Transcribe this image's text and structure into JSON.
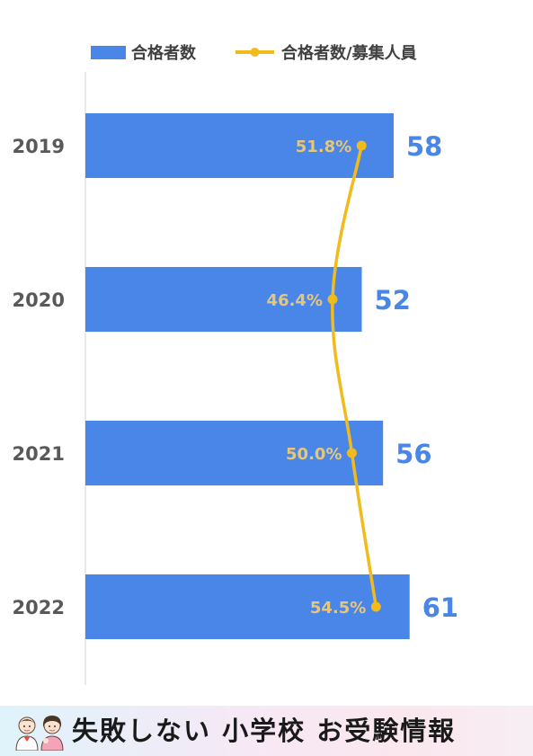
{
  "chart_data": {
    "type": "bar",
    "orientation": "horizontal",
    "categories": [
      "2019",
      "2020",
      "2021",
      "2022"
    ],
    "series": [
      {
        "name": "合格者数",
        "kind": "bar",
        "color": "#4a86e8",
        "values": [
          58,
          52,
          56,
          61
        ],
        "labels": [
          "58",
          "52",
          "56",
          "61"
        ]
      },
      {
        "name": "合格者数/募集人員",
        "kind": "line",
        "color": "#f1bb1b",
        "values": [
          51.8,
          46.4,
          50.0,
          54.5
        ],
        "labels": [
          "51.8%",
          "46.4%",
          "50.0%",
          "54.5%"
        ]
      }
    ],
    "legend": {
      "position": "top",
      "entries": [
        "合格者数",
        "合格者数/募集人員"
      ]
    },
    "grid": false,
    "colors": {
      "bar": "#4a86e8",
      "line": "#f1bb1b",
      "bar_label": "#4a86e8",
      "line_label": "#e6c77a",
      "category_label": "#595959",
      "axis": "#d9d9d9"
    }
  },
  "footer": {
    "title": "失敗しない 小学校 お受験情報",
    "avatars_icon": "children-illustration-icon"
  }
}
